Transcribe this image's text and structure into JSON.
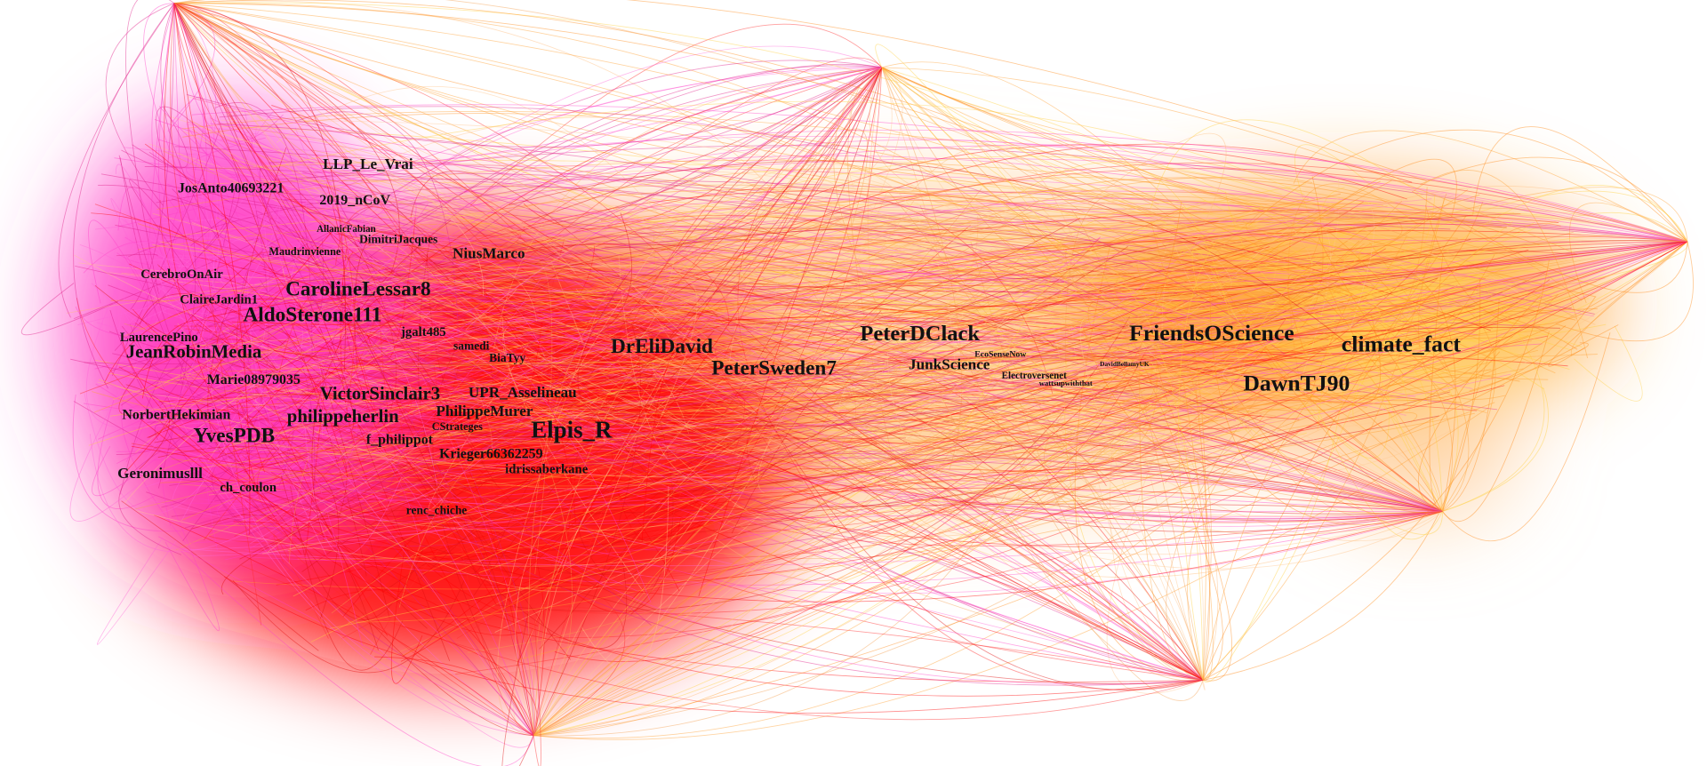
{
  "nodes": [
    {
      "label": "LLP_Le_Vrai"
    },
    {
      "label": "JosAnto40693221"
    },
    {
      "label": "2019_nCoV"
    },
    {
      "label": "AllanicFabian"
    },
    {
      "label": "DimitriJacques"
    },
    {
      "label": "Maudrinvienne"
    },
    {
      "label": "NiusMarco"
    },
    {
      "label": "CerebroOnAir"
    },
    {
      "label": "CarolineLessar8"
    },
    {
      "label": "ClaireJardin1"
    },
    {
      "label": "AldoSterone111"
    },
    {
      "label": "jgalt485"
    },
    {
      "label": "LaurencePino"
    },
    {
      "label": "samedi"
    },
    {
      "label": "JeanRobinMedia"
    },
    {
      "label": "BiaTyy"
    },
    {
      "label": "DrEliDavid"
    },
    {
      "label": "PeterDClack"
    },
    {
      "label": "FriendsOScience"
    },
    {
      "label": "climate_fact"
    },
    {
      "label": "JunkScience"
    },
    {
      "label": "EcoSenseNow"
    },
    {
      "label": "PeterSweden7"
    },
    {
      "label": "DavidBellamyUK"
    },
    {
      "label": "Electroversenet"
    },
    {
      "label": "wattsupwiththat"
    },
    {
      "label": "DawnTJ90"
    },
    {
      "label": "Marie08979035"
    },
    {
      "label": "VictorSinclair3"
    },
    {
      "label": "UPR_Asselineau"
    },
    {
      "label": "PhilippeMurer"
    },
    {
      "label": "NorbertHekimian"
    },
    {
      "label": "philippeherlin"
    },
    {
      "label": "CStrateges"
    },
    {
      "label": "Elpis_R"
    },
    {
      "label": "YvesPDB"
    },
    {
      "label": "f_philippot"
    },
    {
      "label": "Krieger66362259"
    },
    {
      "label": "idrissaberkane"
    },
    {
      "label": "Geronimuslll"
    },
    {
      "label": "ch_coulon"
    },
    {
      "label": "renc_chiche"
    }
  ]
}
